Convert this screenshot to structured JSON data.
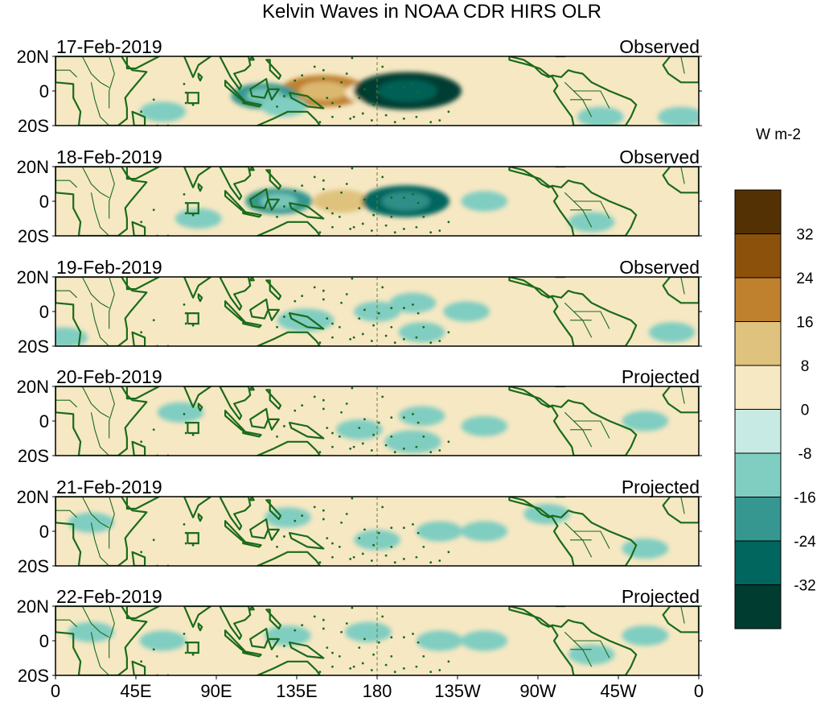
{
  "chart_data": {
    "type": "heatmap",
    "title": "Kelvin Waves in NOAA CDR HIRS OLR",
    "units": "W m-2",
    "x_ticks": [
      "0",
      "45E",
      "90E",
      "135E",
      "180",
      "135W",
      "90W",
      "45W",
      "0"
    ],
    "y_ticks": [
      "20N",
      "0",
      "20S"
    ],
    "xlim": [
      0,
      360
    ],
    "ylim": [
      -20,
      20
    ],
    "reference_line_lon": 180,
    "colorbar": {
      "labels": [
        "32",
        "24",
        "16",
        "8",
        "0",
        "-8",
        "-16",
        "-24",
        "-32"
      ],
      "levels": [
        40,
        32,
        24,
        16,
        8,
        0,
        -8,
        -16,
        -24,
        -32,
        -40
      ],
      "colors": [
        "#543005",
        "#8c510a",
        "#bf812d",
        "#dfc27d",
        "#f6e8c3",
        "#c7eae5",
        "#80cdc1",
        "#35978f",
        "#01665e",
        "#003c30"
      ]
    },
    "panels": [
      {
        "date": "17-Feb-2019",
        "status": "Observed",
        "anomalies": [
          {
            "lon": 150,
            "lat": 0,
            "value": 24
          },
          {
            "lon": 175,
            "lat": -1,
            "value": 8
          },
          {
            "lon": 197,
            "lat": 0,
            "value": -32
          },
          {
            "lon": 117,
            "lat": -3,
            "value": -16
          },
          {
            "lon": 128,
            "lat": -9,
            "value": -8
          },
          {
            "lon": 42,
            "lat": 8,
            "value": 8
          },
          {
            "lon": 5,
            "lat": 0,
            "value": 8
          },
          {
            "lon": 330,
            "lat": 0,
            "value": 8
          },
          {
            "lon": 305,
            "lat": -15,
            "value": -8
          },
          {
            "lon": 350,
            "lat": -15,
            "value": -8
          },
          {
            "lon": 60,
            "lat": -12,
            "value": -8
          }
        ]
      },
      {
        "date": "18-Feb-2019",
        "status": "Observed",
        "anomalies": [
          {
            "lon": 160,
            "lat": 0,
            "value": 12
          },
          {
            "lon": 196,
            "lat": 0,
            "value": -24
          },
          {
            "lon": 125,
            "lat": 0,
            "value": -16
          },
          {
            "lon": 15,
            "lat": 2,
            "value": 8
          },
          {
            "lon": 240,
            "lat": 0,
            "value": -8
          },
          {
            "lon": 340,
            "lat": 0,
            "value": 8
          },
          {
            "lon": 80,
            "lat": -10,
            "value": -8
          },
          {
            "lon": 300,
            "lat": -12,
            "value": -8
          }
        ]
      },
      {
        "date": "19-Feb-2019",
        "status": "Observed",
        "anomalies": [
          {
            "lon": 20,
            "lat": 0,
            "value": 8
          },
          {
            "lon": 45,
            "lat": 10,
            "value": 8
          },
          {
            "lon": 140,
            "lat": -5,
            "value": -12
          },
          {
            "lon": 180,
            "lat": 0,
            "value": -8
          },
          {
            "lon": 230,
            "lat": 0,
            "value": -8
          },
          {
            "lon": 200,
            "lat": 5,
            "value": -8
          },
          {
            "lon": 205,
            "lat": -12,
            "value": -8
          },
          {
            "lon": 280,
            "lat": -3,
            "value": 8
          },
          {
            "lon": 345,
            "lat": -12,
            "value": -8
          },
          {
            "lon": 5,
            "lat": -15,
            "value": -8
          }
        ]
      },
      {
        "date": "20-Feb-2019",
        "status": "Projected",
        "anomalies": [
          {
            "lon": 22,
            "lat": 0,
            "value": 8
          },
          {
            "lon": 32,
            "lat": 12,
            "value": 8
          },
          {
            "lon": 205,
            "lat": 10,
            "value": 8
          },
          {
            "lon": 200,
            "lat": -12,
            "value": -12
          },
          {
            "lon": 205,
            "lat": 3,
            "value": -8
          },
          {
            "lon": 170,
            "lat": -5,
            "value": -8
          },
          {
            "lon": 240,
            "lat": -3,
            "value": -8
          },
          {
            "lon": 70,
            "lat": 5,
            "value": -8
          },
          {
            "lon": 330,
            "lat": 0,
            "value": -8
          },
          {
            "lon": 255,
            "lat": 10,
            "value": 8
          }
        ]
      },
      {
        "date": "21-Feb-2019",
        "status": "Projected",
        "anomalies": [
          {
            "lon": 45,
            "lat": 0,
            "value": 8
          },
          {
            "lon": 240,
            "lat": 0,
            "value": -8
          },
          {
            "lon": 215,
            "lat": 0,
            "value": -8
          },
          {
            "lon": 180,
            "lat": -5,
            "value": -8
          },
          {
            "lon": 130,
            "lat": 8,
            "value": -8
          },
          {
            "lon": 20,
            "lat": 5,
            "value": -8
          },
          {
            "lon": 275,
            "lat": 10,
            "value": -8
          },
          {
            "lon": 330,
            "lat": -10,
            "value": -8
          },
          {
            "lon": 210,
            "lat": 14,
            "value": 8
          },
          {
            "lon": 230,
            "lat": -12,
            "value": 8
          }
        ]
      },
      {
        "date": "22-Feb-2019",
        "status": "Projected",
        "anomalies": [
          {
            "lon": 240,
            "lat": 0,
            "value": -8
          },
          {
            "lon": 215,
            "lat": 0,
            "value": -8
          },
          {
            "lon": 130,
            "lat": 3,
            "value": -8
          },
          {
            "lon": 175,
            "lat": 5,
            "value": -8
          },
          {
            "lon": 20,
            "lat": 5,
            "value": -8
          },
          {
            "lon": 60,
            "lat": 0,
            "value": -8
          },
          {
            "lon": 330,
            "lat": 3,
            "value": -8
          },
          {
            "lon": 300,
            "lat": -8,
            "value": -8
          }
        ]
      }
    ]
  }
}
